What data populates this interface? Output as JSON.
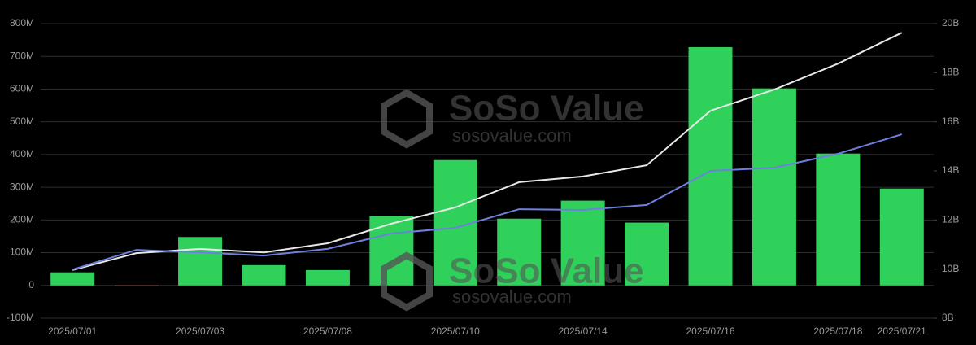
{
  "chart_data": {
    "type": "bar",
    "categories": [
      "2025/07/01",
      null,
      "2025/07/03",
      null,
      "2025/07/08",
      null,
      "2025/07/10",
      null,
      "2025/07/14",
      null,
      "2025/07/16",
      null,
      "2025/07/18",
      "2025/07/21"
    ],
    "series": [
      {
        "type": "bar",
        "color": "#2fd15a",
        "negative_color": "#e0503a",
        "values": [
          40,
          -2,
          148,
          62,
          47,
          211,
          383,
          204,
          259,
          192,
          728,
          602,
          403,
          296
        ]
      },
      {
        "type": "line",
        "axis": "y2",
        "color": "#e8e8e8",
        "values": [
          9.96,
          10.65,
          10.82,
          10.68,
          11.05,
          11.85,
          12.51,
          13.54,
          13.77,
          14.23,
          16.45,
          17.31,
          18.37,
          19.63
        ]
      },
      {
        "type": "line",
        "axis": "y2",
        "color": "#6f7fe0",
        "values": [
          9.98,
          10.78,
          10.68,
          10.55,
          10.82,
          11.45,
          11.68,
          12.44,
          12.41,
          12.61,
          14.0,
          14.13,
          14.7,
          15.49
        ]
      }
    ],
    "ylim": [
      -100,
      800
    ],
    "yticks": [
      {
        "value": -100,
        "label": "-100M"
      },
      0,
      {
        "value": 100,
        "label": "100M"
      },
      {
        "value": 200,
        "label": "200M"
      },
      {
        "value": 300,
        "label": "300M"
      },
      {
        "value": 400,
        "label": "400M"
      },
      {
        "value": 500,
        "label": "500M"
      },
      {
        "value": 600,
        "label": "600M"
      },
      {
        "value": 700,
        "label": "700M"
      },
      {
        "value": 800,
        "label": "800M"
      }
    ],
    "y2lim": [
      8,
      20
    ],
    "y2ticks": [
      {
        "value": 8,
        "label": "8B"
      },
      {
        "value": 10,
        "label": "10B"
      },
      {
        "value": 12,
        "label": "12B"
      },
      {
        "value": 14,
        "label": "14B"
      },
      {
        "value": 16,
        "label": "16B"
      },
      {
        "value": 18,
        "label": "18B"
      },
      {
        "value": 20,
        "label": "20B"
      }
    ],
    "grid": true,
    "watermark": {
      "brand": "SoSo Value",
      "url": "sosovalue.com"
    }
  }
}
